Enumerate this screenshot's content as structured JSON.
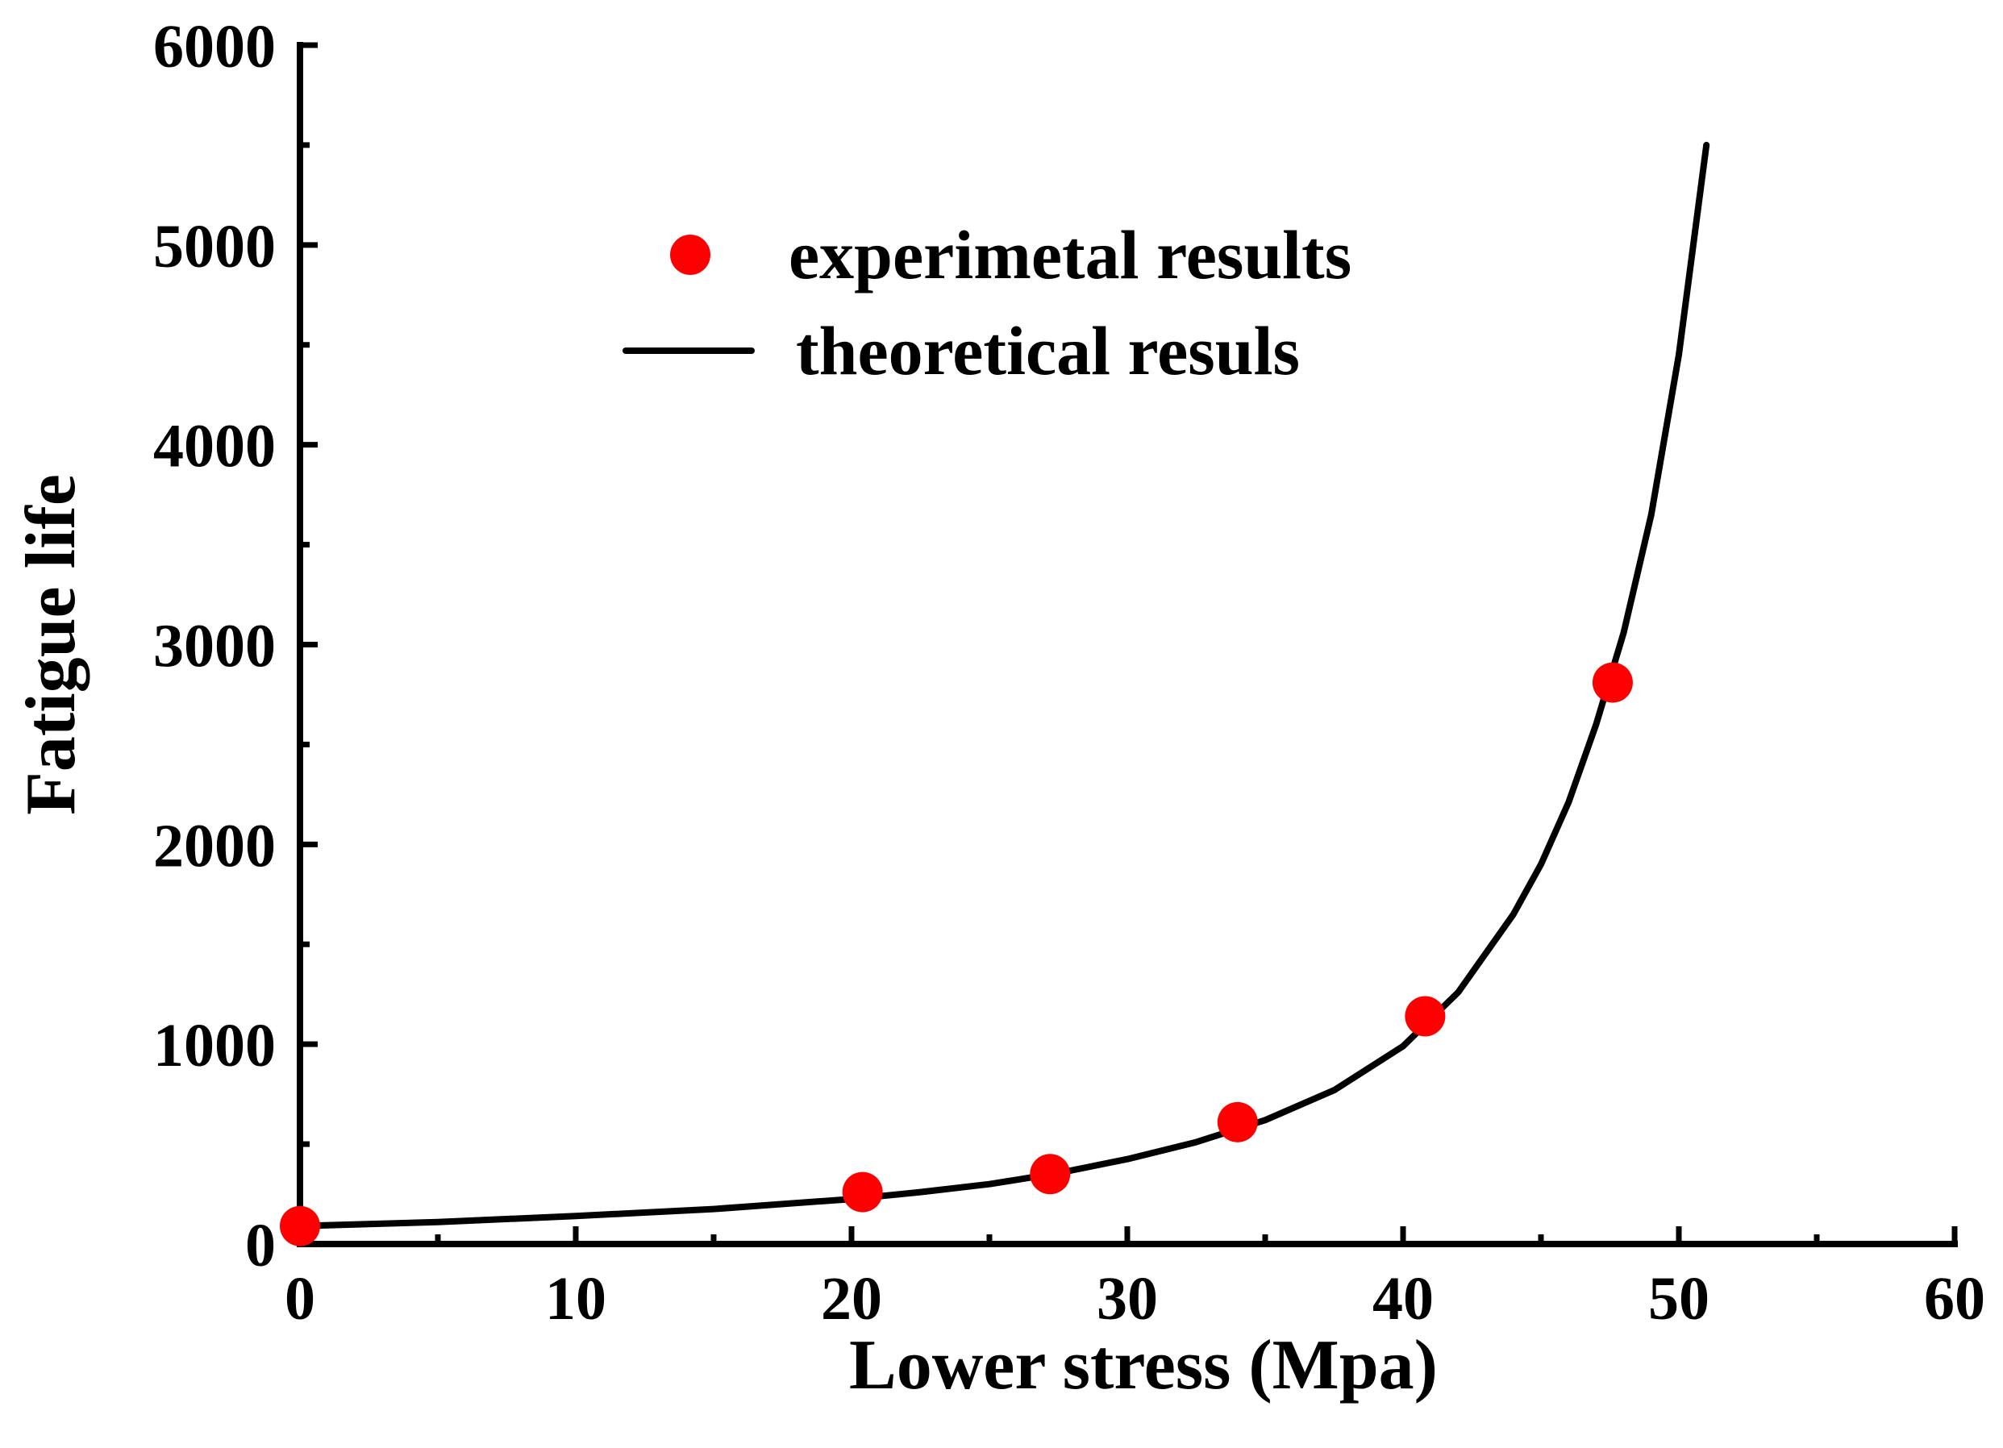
{
  "chart_data": {
    "type": "scatter",
    "title": "",
    "xlabel": "Lower stress (Mpa)",
    "ylabel": "Fatigue life",
    "xlim": [
      0,
      60
    ],
    "ylim": [
      0,
      6000
    ],
    "x_ticks": [
      "0",
      "10",
      "20",
      "30",
      "40",
      "50",
      "60"
    ],
    "y_ticks": [
      "0",
      "1000",
      "2000",
      "3000",
      "4000",
      "5000",
      "6000"
    ],
    "grid": false,
    "legend_position": "top-center",
    "colors": {
      "experimental": "#ff0000",
      "theoretical": "#000000",
      "axis": "#000000"
    },
    "series": [
      {
        "name": "experimetal results",
        "kind": "scatter",
        "x": [
          0,
          20.4,
          27.2,
          34.0,
          40.8,
          47.6
        ],
        "y": [
          90,
          260,
          350,
          610,
          1140,
          2810
        ]
      },
      {
        "name": "theoretical resuls",
        "kind": "line",
        "x": [
          0,
          5,
          10,
          15,
          20,
          22.5,
          25,
          27.5,
          30,
          32.5,
          35,
          37.5,
          40,
          42,
          44,
          45,
          46,
          47,
          48,
          49,
          50,
          51
        ],
        "y": [
          90,
          110,
          140,
          175,
          225,
          260,
          300,
          355,
          425,
          510,
          620,
          770,
          990,
          1260,
          1650,
          1900,
          2210,
          2600,
          3060,
          3650,
          4450,
          5500
        ]
      }
    ]
  }
}
